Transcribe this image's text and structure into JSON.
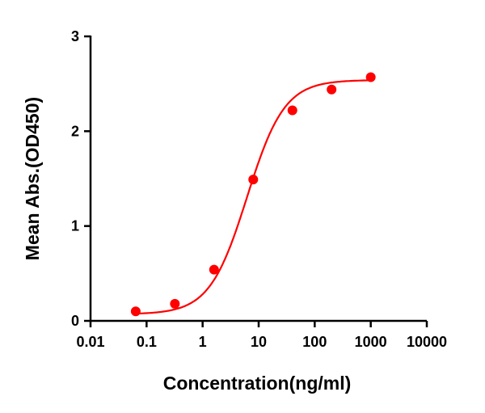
{
  "chart_data": {
    "type": "scatter",
    "title": "",
    "xlabel": "Concentration(ng/ml)",
    "ylabel": "Mean Abs.(OD450)",
    "xscale": "log",
    "xlim": [
      0.01,
      10000
    ],
    "ylim": [
      0,
      3
    ],
    "xticks": [
      "0.01",
      "0.1",
      "1",
      "10",
      "100",
      "1000",
      "10000"
    ],
    "yticks": [
      "0",
      "1",
      "2",
      "3"
    ],
    "grid": false,
    "fit_curve": "sigmoidal",
    "color": "#ff0000",
    "series": [
      {
        "x": [
          0.064,
          0.32,
          1.6,
          8,
          40,
          200,
          1000
        ],
        "y": [
          0.1,
          0.18,
          0.54,
          1.49,
          2.22,
          2.44,
          2.57
        ]
      }
    ]
  }
}
